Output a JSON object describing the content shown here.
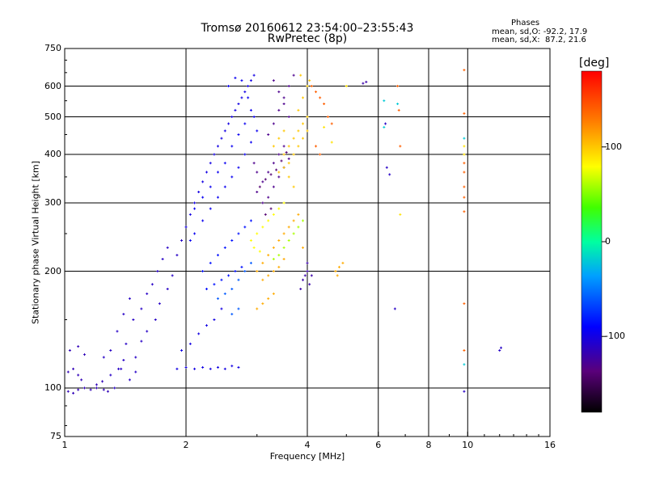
{
  "chart_data": {
    "type": "scatter",
    "title_line1": "Tromsø 20160612 23:54:00–23:55:43",
    "title_line2": "RwPretec (8p)",
    "stats": {
      "title": "Phases",
      "o_line": "mean, sd,O: -92.2, 17.9",
      "x_line": "mean, sd,X:  87.2, 21.6"
    },
    "xlabel": "Frequency [MHz]",
    "ylabel": "Stationary phase Virtual Height [km]",
    "x_scale": "log",
    "y_scale": "log",
    "xlim": [
      1,
      16
    ],
    "ylim": [
      75,
      750
    ],
    "xticks": [
      {
        "value": 1,
        "label": "1"
      },
      {
        "value": 2,
        "label": "2"
      },
      {
        "value": 4,
        "label": "4"
      },
      {
        "value": 6,
        "label": "6"
      },
      {
        "value": 8,
        "label": "8"
      },
      {
        "value": 10,
        "label": "10"
      },
      {
        "value": 16,
        "label": "16"
      }
    ],
    "yticks": [
      {
        "value": 75,
        "label": "75"
      },
      {
        "value": 100,
        "label": "100"
      },
      {
        "value": 200,
        "label": "200"
      },
      {
        "value": 300,
        "label": "300"
      },
      {
        "value": 400,
        "label": "400"
      },
      {
        "value": 500,
        "label": "500"
      },
      {
        "value": 600,
        "label": "600"
      },
      {
        "value": 750,
        "label": "750"
      }
    ],
    "grid": true,
    "colorbar": {
      "label": "[deg]",
      "vmin": -180,
      "vmax": 180,
      "ticks": [
        {
          "value": 100,
          "label": "100"
        },
        {
          "value": 0,
          "label": "0"
        },
        {
          "value": -100,
          "label": "-100"
        }
      ]
    },
    "series": [
      {
        "phase": -115,
        "points": [
          [
            1.02,
            98
          ],
          [
            1.05,
            97
          ],
          [
            1.08,
            99
          ],
          [
            1.12,
            100
          ],
          [
            1.16,
            99
          ],
          [
            1.2,
            100
          ],
          [
            1.25,
            99
          ],
          [
            1.28,
            98
          ],
          [
            1.02,
            110
          ],
          [
            1.05,
            112
          ],
          [
            1.08,
            108
          ],
          [
            1.1,
            105
          ],
          [
            1.03,
            125
          ],
          [
            1.08,
            128
          ],
          [
            1.12,
            122
          ],
          [
            1.2,
            102
          ],
          [
            1.24,
            104
          ]
        ]
      },
      {
        "phase": -110,
        "points": [
          [
            1.25,
            120
          ],
          [
            1.3,
            125
          ],
          [
            1.35,
            140
          ],
          [
            1.4,
            155
          ],
          [
            1.45,
            170
          ],
          [
            1.3,
            108
          ],
          [
            1.36,
            112
          ],
          [
            1.42,
            130
          ],
          [
            1.48,
            150
          ],
          [
            1.55,
            160
          ],
          [
            1.6,
            175
          ],
          [
            1.65,
            185
          ],
          [
            1.7,
            200
          ],
          [
            1.75,
            215
          ],
          [
            1.8,
            230
          ],
          [
            1.9,
            220
          ],
          [
            1.95,
            240
          ],
          [
            1.5,
            120
          ],
          [
            1.55,
            132
          ],
          [
            1.6,
            140
          ],
          [
            1.68,
            150
          ],
          [
            1.72,
            165
          ],
          [
            1.8,
            180
          ],
          [
            1.85,
            195
          ],
          [
            1.4,
            118
          ],
          [
            1.45,
            105
          ],
          [
            1.5,
            110
          ],
          [
            1.33,
            100
          ],
          [
            1.38,
            112
          ]
        ]
      },
      {
        "phase": -100,
        "points": [
          [
            1.9,
            112
          ],
          [
            2.0,
            113
          ],
          [
            2.1,
            112
          ],
          [
            2.2,
            113
          ],
          [
            2.3,
            112
          ],
          [
            2.4,
            113
          ],
          [
            2.5,
            112
          ],
          [
            2.6,
            114
          ],
          [
            2.7,
            113
          ],
          [
            1.95,
            125
          ],
          [
            2.05,
            130
          ],
          [
            2.15,
            138
          ],
          [
            2.25,
            145
          ],
          [
            2.35,
            150
          ],
          [
            2.45,
            160
          ],
          [
            2.0,
            260
          ],
          [
            2.05,
            280
          ],
          [
            2.1,
            300
          ],
          [
            2.15,
            320
          ],
          [
            2.2,
            340
          ],
          [
            2.25,
            360
          ],
          [
            2.3,
            380
          ],
          [
            2.35,
            400
          ],
          [
            2.4,
            420
          ],
          [
            2.45,
            440
          ],
          [
            2.5,
            460
          ],
          [
            2.55,
            480
          ],
          [
            2.6,
            500
          ],
          [
            2.65,
            520
          ],
          [
            2.7,
            540
          ],
          [
            2.75,
            560
          ],
          [
            2.8,
            580
          ],
          [
            2.85,
            600
          ],
          [
            2.9,
            620
          ],
          [
            2.95,
            640
          ]
        ]
      },
      {
        "phase": -95,
        "points": [
          [
            2.05,
            240
          ],
          [
            2.1,
            250
          ],
          [
            2.2,
            270
          ],
          [
            2.3,
            290
          ],
          [
            2.4,
            310
          ],
          [
            2.5,
            330
          ],
          [
            2.6,
            350
          ],
          [
            2.7,
            370
          ],
          [
            2.8,
            400
          ],
          [
            2.9,
            430
          ],
          [
            2.55,
            600
          ],
          [
            2.65,
            630
          ],
          [
            2.75,
            620
          ],
          [
            2.85,
            560
          ],
          [
            2.95,
            500
          ],
          [
            2.6,
            420
          ],
          [
            2.7,
            450
          ],
          [
            2.8,
            480
          ],
          [
            2.9,
            520
          ],
          [
            3.0,
            460
          ],
          [
            2.5,
            380
          ],
          [
            2.4,
            360
          ],
          [
            2.3,
            330
          ],
          [
            2.2,
            310
          ],
          [
            2.1,
            290
          ]
        ]
      },
      {
        "phase": -85,
        "points": [
          [
            2.2,
            200
          ],
          [
            2.3,
            210
          ],
          [
            2.4,
            220
          ],
          [
            2.5,
            230
          ],
          [
            2.6,
            240
          ],
          [
            2.7,
            250
          ],
          [
            2.8,
            260
          ],
          [
            2.9,
            270
          ],
          [
            2.25,
            180
          ],
          [
            2.35,
            185
          ],
          [
            2.45,
            190
          ],
          [
            2.55,
            195
          ],
          [
            2.65,
            200
          ],
          [
            2.75,
            205
          ]
        ]
      },
      {
        "phase": -60,
        "points": [
          [
            2.4,
            170
          ],
          [
            2.5,
            175
          ],
          [
            2.6,
            180
          ],
          [
            2.7,
            190
          ],
          [
            2.8,
            200
          ],
          [
            2.9,
            210
          ],
          [
            2.6,
            155
          ],
          [
            2.7,
            160
          ]
        ]
      },
      {
        "phase": -130,
        "points": [
          [
            3.0,
            320
          ],
          [
            3.1,
            340
          ],
          [
            3.2,
            360
          ],
          [
            3.3,
            380
          ],
          [
            3.4,
            400
          ],
          [
            3.5,
            420
          ],
          [
            3.1,
            300
          ],
          [
            3.2,
            310
          ],
          [
            3.3,
            330
          ],
          [
            3.4,
            350
          ],
          [
            3.5,
            370
          ],
          [
            3.6,
            390
          ],
          [
            3.2,
            450
          ],
          [
            3.3,
            480
          ],
          [
            3.4,
            520
          ],
          [
            3.5,
            560
          ],
          [
            3.6,
            600
          ],
          [
            3.7,
            640
          ],
          [
            3.3,
            620
          ],
          [
            3.4,
            580
          ],
          [
            3.5,
            540
          ],
          [
            3.6,
            500
          ],
          [
            3.0,
            360
          ],
          [
            2.95,
            380
          ]
        ]
      },
      {
        "phase": -140,
        "points": [
          [
            3.05,
            330
          ],
          [
            3.15,
            345
          ],
          [
            3.25,
            355
          ],
          [
            3.35,
            365
          ],
          [
            3.45,
            385
          ],
          [
            3.55,
            405
          ],
          [
            3.15,
            280
          ],
          [
            3.25,
            290
          ]
        ]
      },
      {
        "phase": -120,
        "points": [
          [
            3.9,
            190
          ],
          [
            3.95,
            195
          ],
          [
            4.0,
            200
          ],
          [
            4.05,
            185
          ],
          [
            4.1,
            195
          ],
          [
            3.85,
            180
          ],
          [
            4.0,
            210
          ],
          [
            5.5,
            610
          ],
          [
            5.6,
            615
          ]
        ]
      },
      {
        "phase": 100,
        "points": [
          [
            3.5,
            400
          ],
          [
            3.6,
            420
          ],
          [
            3.7,
            440
          ],
          [
            3.8,
            460
          ],
          [
            3.9,
            480
          ],
          [
            4.0,
            500
          ],
          [
            3.6,
            380
          ],
          [
            3.7,
            400
          ],
          [
            3.8,
            420
          ],
          [
            3.9,
            440
          ],
          [
            4.0,
            460
          ],
          [
            3.4,
            360
          ],
          [
            3.5,
            370
          ],
          [
            3.6,
            350
          ],
          [
            3.7,
            330
          ],
          [
            3.8,
            520
          ],
          [
            3.9,
            560
          ],
          [
            4.0,
            600
          ],
          [
            4.05,
            620
          ],
          [
            3.85,
            640
          ],
          [
            3.3,
            420
          ],
          [
            3.4,
            440
          ],
          [
            3.5,
            460
          ]
        ]
      },
      {
        "phase": 110,
        "points": [
          [
            3.0,
            200
          ],
          [
            3.1,
            210
          ],
          [
            3.2,
            220
          ],
          [
            3.3,
            230
          ],
          [
            3.4,
            240
          ],
          [
            3.5,
            250
          ],
          [
            3.6,
            260
          ],
          [
            3.7,
            270
          ],
          [
            3.8,
            280
          ],
          [
            3.9,
            230
          ],
          [
            3.1,
            190
          ],
          [
            3.2,
            195
          ],
          [
            3.3,
            200
          ],
          [
            3.4,
            205
          ],
          [
            3.5,
            215
          ],
          [
            4.7,
            200
          ],
          [
            4.8,
            205
          ],
          [
            4.9,
            210
          ],
          [
            4.75,
            195
          ],
          [
            3.0,
            160
          ],
          [
            3.1,
            165
          ],
          [
            3.2,
            170
          ],
          [
            3.3,
            175
          ]
        ]
      },
      {
        "phase": 80,
        "points": [
          [
            2.9,
            240
          ],
          [
            3.0,
            250
          ],
          [
            3.1,
            260
          ],
          [
            3.2,
            270
          ],
          [
            3.3,
            280
          ],
          [
            3.4,
            290
          ],
          [
            3.5,
            300
          ],
          [
            2.95,
            230
          ],
          [
            3.05,
            225
          ]
        ]
      },
      {
        "phase": 140,
        "points": [
          [
            4.1,
            600
          ],
          [
            4.2,
            580
          ],
          [
            4.3,
            560
          ],
          [
            4.4,
            540
          ],
          [
            4.5,
            500
          ],
          [
            4.6,
            480
          ],
          [
            4.2,
            420
          ],
          [
            4.3,
            400
          ],
          [
            6.7,
            600
          ],
          [
            6.75,
            520
          ],
          [
            6.8,
            420
          ],
          [
            9.8,
            660
          ],
          [
            9.8,
            510
          ],
          [
            9.8,
            380
          ],
          [
            9.8,
            360
          ],
          [
            9.8,
            330
          ],
          [
            9.8,
            310
          ],
          [
            9.8,
            285
          ],
          [
            9.8,
            165
          ],
          [
            9.8,
            125
          ]
        ]
      },
      {
        "phase": 60,
        "points": [
          [
            3.6,
            240
          ],
          [
            3.7,
            250
          ],
          [
            3.8,
            260
          ],
          [
            3.9,
            270
          ],
          [
            3.5,
            230
          ],
          [
            3.4,
            220
          ],
          [
            3.3,
            215
          ]
        ]
      },
      {
        "phase": 90,
        "points": [
          [
            6.8,
            280
          ],
          [
            9.8,
            400
          ],
          [
            9.8,
            420
          ],
          [
            4.4,
            470
          ],
          [
            4.6,
            430
          ],
          [
            5.0,
            600
          ]
        ]
      },
      {
        "phase": -20,
        "points": [
          [
            6.2,
            470
          ],
          [
            6.2,
            550
          ],
          [
            6.7,
            540
          ],
          [
            9.8,
            440
          ],
          [
            9.8,
            115
          ]
        ]
      },
      {
        "phase": -110,
        "points": [
          [
            6.3,
            370
          ],
          [
            6.4,
            355
          ],
          [
            6.6,
            160
          ],
          [
            9.8,
            98
          ],
          [
            12.0,
            125
          ],
          [
            12.1,
            127
          ],
          [
            6.25,
            480
          ]
        ]
      }
    ]
  }
}
